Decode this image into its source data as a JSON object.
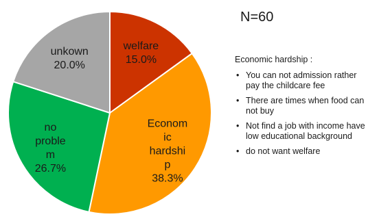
{
  "chart_data": {
    "type": "pie",
    "start_angle_deg": 0,
    "direction": "clockwise",
    "slices": [
      {
        "label_lines": [
          "welfare"
        ],
        "value": 15.0,
        "value_label": "15.0%",
        "color": "#cc3300",
        "label_color": "#ffffff"
      },
      {
        "label_lines": [
          "Econom",
          "ic",
          "hardshi",
          "p"
        ],
        "value": 38.3,
        "value_label": "38.3%",
        "color": "#ff9900",
        "label_color": "#ffffff"
      },
      {
        "label_lines": [
          "no",
          "proble",
          "m"
        ],
        "value": 26.7,
        "value_label": "26.7%",
        "color": "#00b050",
        "label_color": "#1a1a1a"
      },
      {
        "label_lines": [
          "unkown"
        ],
        "value": 20.0,
        "value_label": "20.0%",
        "color": "#a6a6a6",
        "label_color": "#1a1a1a"
      }
    ]
  },
  "n_label": "N=60",
  "notes": {
    "title": "Economic hardship :",
    "items": [
      "You can not admission rather pay the childcare fee",
      "There are times when food can not buy",
      "Not find a job with income have low educational background",
      "do not want welfare"
    ]
  }
}
